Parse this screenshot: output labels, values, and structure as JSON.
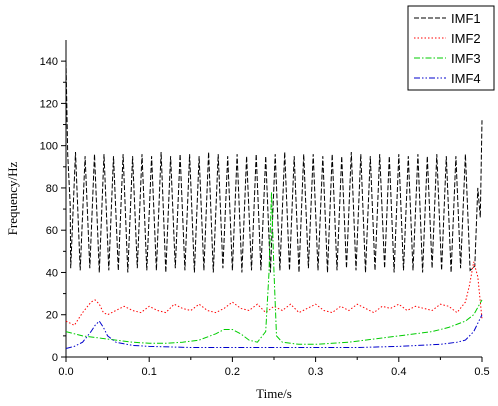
{
  "chart_data": {
    "type": "line",
    "title": "",
    "xlabel": "Time/s",
    "ylabel": "Frequency/Hz",
    "xlim": [
      0.0,
      0.5
    ],
    "ylim": [
      0,
      150
    ],
    "xticks": [
      "0.0",
      "0.1",
      "0.2",
      "0.3",
      "0.4",
      "0.5"
    ],
    "yticks": [
      "0",
      "20",
      "40",
      "60",
      "80",
      "100",
      "120",
      "140"
    ],
    "grid": false,
    "legend_position": "top-right",
    "series": [
      {
        "name": "IMF1",
        "color": "#000000",
        "dash": "dashed",
        "x": [
          0.0,
          0.002,
          0.005,
          0.0057,
          0.0114,
          0.0171,
          0.0229,
          0.0286,
          0.0343,
          0.04,
          0.0457,
          0.0514,
          0.0571,
          0.0629,
          0.0686,
          0.0743,
          0.08,
          0.0857,
          0.0914,
          0.0971,
          0.1029,
          0.1086,
          0.1143,
          0.12,
          0.1257,
          0.1314,
          0.1371,
          0.1429,
          0.1486,
          0.1543,
          0.16,
          0.1657,
          0.1714,
          0.1771,
          0.1829,
          0.1886,
          0.1943,
          0.2,
          0.2057,
          0.2114,
          0.2171,
          0.2229,
          0.2286,
          0.2343,
          0.24,
          0.2457,
          0.2514,
          0.2571,
          0.2629,
          0.2686,
          0.2743,
          0.28,
          0.2857,
          0.2914,
          0.2971,
          0.3029,
          0.3086,
          0.3143,
          0.32,
          0.3257,
          0.3314,
          0.3371,
          0.3429,
          0.3486,
          0.3543,
          0.36,
          0.3657,
          0.3714,
          0.3771,
          0.3829,
          0.3886,
          0.3943,
          0.4,
          0.4057,
          0.4114,
          0.4171,
          0.4229,
          0.4286,
          0.4343,
          0.44,
          0.4457,
          0.4514,
          0.4571,
          0.4629,
          0.4686,
          0.4743,
          0.48,
          0.4857,
          0.4914,
          0.495,
          0.498,
          0.5
        ],
        "y": [
          140,
          96,
          72,
          42,
          97,
          41,
          95,
          42,
          96,
          40,
          96,
          41,
          95,
          41,
          96,
          40,
          95,
          42,
          96,
          41,
          95,
          41,
          97,
          40,
          95,
          42,
          96,
          41,
          96,
          40,
          95,
          41,
          97,
          40,
          96,
          42,
          95,
          41,
          96,
          40,
          95,
          41,
          96,
          41,
          95,
          40,
          96,
          41,
          97,
          41,
          95,
          40,
          96,
          42,
          96,
          41,
          95,
          40,
          96,
          41,
          95,
          42,
          97,
          41,
          96,
          40,
          95,
          41,
          96,
          42,
          95,
          40,
          96,
          41,
          95,
          41,
          96,
          40,
          95,
          42,
          96,
          41,
          95,
          40,
          95,
          42,
          96,
          41,
          43,
          80,
          66,
          112
        ]
      },
      {
        "name": "IMF2",
        "color": "#ff0000",
        "dash": "dotted",
        "x": [
          0.0,
          0.01,
          0.02,
          0.03,
          0.035,
          0.04,
          0.045,
          0.05,
          0.06,
          0.07,
          0.08,
          0.09,
          0.1,
          0.11,
          0.12,
          0.13,
          0.14,
          0.15,
          0.16,
          0.17,
          0.18,
          0.19,
          0.2,
          0.21,
          0.22,
          0.23,
          0.24,
          0.25,
          0.26,
          0.27,
          0.28,
          0.29,
          0.3,
          0.31,
          0.32,
          0.33,
          0.34,
          0.35,
          0.36,
          0.37,
          0.38,
          0.39,
          0.4,
          0.41,
          0.42,
          0.43,
          0.44,
          0.45,
          0.46,
          0.47,
          0.48,
          0.485,
          0.49,
          0.495,
          0.5
        ],
        "y": [
          17,
          15,
          21,
          26,
          27,
          25,
          21,
          20,
          22,
          24,
          22,
          21,
          24,
          22,
          21,
          25,
          23,
          22,
          25,
          22,
          21,
          23,
          26,
          23,
          22,
          25,
          21,
          24,
          22,
          25,
          21,
          23,
          25,
          22,
          21,
          24,
          22,
          25,
          23,
          21,
          24,
          23,
          25,
          22,
          24,
          23,
          22,
          25,
          24,
          21,
          26,
          34,
          45,
          38,
          18
        ]
      },
      {
        "name": "IMF3",
        "color": "#00cc00",
        "dash": "dashdot",
        "x": [
          0.0,
          0.02,
          0.04,
          0.06,
          0.08,
          0.1,
          0.12,
          0.14,
          0.16,
          0.18,
          0.19,
          0.2,
          0.21,
          0.22,
          0.23,
          0.24,
          0.244,
          0.247,
          0.25,
          0.253,
          0.26,
          0.28,
          0.3,
          0.32,
          0.34,
          0.36,
          0.38,
          0.4,
          0.42,
          0.44,
          0.46,
          0.48,
          0.49,
          0.5
        ],
        "y": [
          12,
          10,
          9,
          8,
          7,
          6.5,
          6.5,
          7,
          8,
          11,
          13,
          13,
          11,
          8,
          7,
          12,
          40,
          78,
          40,
          10,
          7,
          6,
          6,
          6.5,
          7,
          8,
          9,
          10,
          11,
          12,
          14,
          17,
          20,
          27
        ]
      },
      {
        "name": "IMF4",
        "color": "#0000cc",
        "dash": "dashdotdot",
        "x": [
          0.0,
          0.01,
          0.02,
          0.03,
          0.035,
          0.04,
          0.045,
          0.05,
          0.06,
          0.08,
          0.1,
          0.15,
          0.2,
          0.25,
          0.3,
          0.35,
          0.4,
          0.45,
          0.47,
          0.48,
          0.49,
          0.5
        ],
        "y": [
          4,
          5,
          7,
          12,
          15,
          17,
          14,
          10,
          7,
          5.5,
          5,
          4.5,
          4.5,
          4.5,
          4.5,
          4.5,
          5,
          6,
          7,
          8,
          12,
          20
        ]
      }
    ]
  }
}
